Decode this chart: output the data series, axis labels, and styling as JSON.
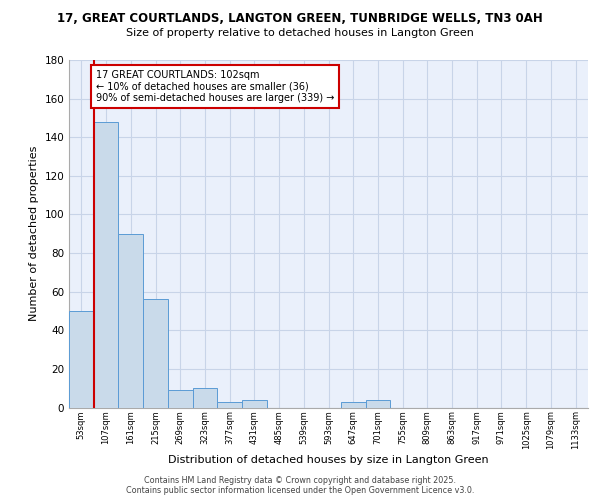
{
  "title_line1": "17, GREAT COURTLANDS, LANGTON GREEN, TUNBRIDGE WELLS, TN3 0AH",
  "title_line2": "Size of property relative to detached houses in Langton Green",
  "xlabel": "Distribution of detached houses by size in Langton Green",
  "ylabel": "Number of detached properties",
  "bin_labels": [
    "53sqm",
    "107sqm",
    "161sqm",
    "215sqm",
    "269sqm",
    "323sqm",
    "377sqm",
    "431sqm",
    "485sqm",
    "539sqm",
    "593sqm",
    "647sqm",
    "701sqm",
    "755sqm",
    "809sqm",
    "863sqm",
    "917sqm",
    "971sqm",
    "1025sqm",
    "1079sqm",
    "1133sqm"
  ],
  "bar_values": [
    50,
    148,
    90,
    56,
    9,
    10,
    3,
    4,
    0,
    0,
    0,
    3,
    4,
    0,
    0,
    0,
    0,
    0,
    0,
    0,
    0
  ],
  "bar_color": "#c9daea",
  "bar_edge_color": "#5b9bd5",
  "highlight_color": "#cc0000",
  "annotation_text": "17 GREAT COURTLANDS: 102sqm\n← 10% of detached houses are smaller (36)\n90% of semi-detached houses are larger (339) →",
  "annotation_box_color": "#ffffff",
  "annotation_box_edge": "#cc0000",
  "ylim": [
    0,
    180
  ],
  "yticks": [
    0,
    20,
    40,
    60,
    80,
    100,
    120,
    140,
    160,
    180
  ],
  "grid_color": "#c8d4e8",
  "background_color": "#eaf0fb",
  "footer_line1": "Contains HM Land Registry data © Crown copyright and database right 2025.",
  "footer_line2": "Contains public sector information licensed under the Open Government Licence v3.0."
}
